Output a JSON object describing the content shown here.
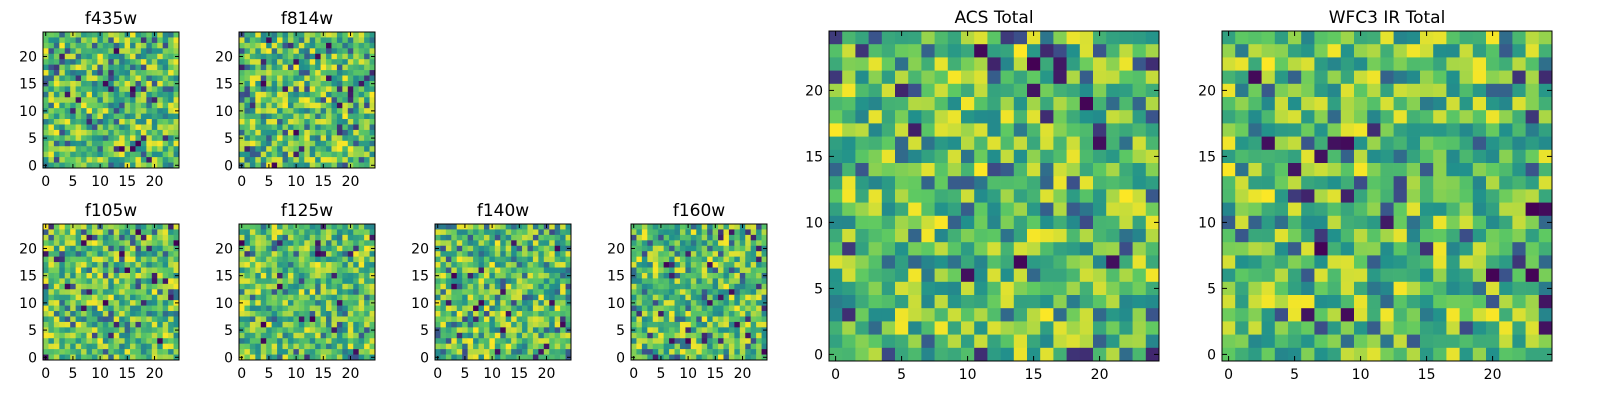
{
  "chart_data": [
    {
      "type": "heatmap",
      "title": "f435w",
      "xticks": [
        "0",
        "5",
        "10",
        "15",
        "20"
      ],
      "yticks": [
        "0",
        "5",
        "10",
        "15",
        "20"
      ],
      "xlim": [
        -0.5,
        24.5
      ],
      "ylim": [
        -0.5,
        24.5
      ],
      "grid_size": 25,
      "seed": 11,
      "colormap": "viridis"
    },
    {
      "type": "heatmap",
      "title": "f814w",
      "xticks": [
        "0",
        "5",
        "10",
        "15",
        "20"
      ],
      "yticks": [
        "0",
        "5",
        "10",
        "15",
        "20"
      ],
      "xlim": [
        -0.5,
        24.5
      ],
      "ylim": [
        -0.5,
        24.5
      ],
      "grid_size": 25,
      "seed": 23,
      "colormap": "viridis"
    },
    {
      "type": "heatmap",
      "title": "f105w",
      "xticks": [
        "0",
        "5",
        "10",
        "15",
        "20"
      ],
      "yticks": [
        "0",
        "5",
        "10",
        "15",
        "20"
      ],
      "xlim": [
        -0.5,
        24.5
      ],
      "ylim": [
        -0.5,
        24.5
      ],
      "grid_size": 25,
      "seed": 37,
      "colormap": "viridis"
    },
    {
      "type": "heatmap",
      "title": "f125w",
      "xticks": [
        "0",
        "5",
        "10",
        "15",
        "20"
      ],
      "yticks": [
        "0",
        "5",
        "10",
        "15",
        "20"
      ],
      "xlim": [
        -0.5,
        24.5
      ],
      "ylim": [
        -0.5,
        24.5
      ],
      "grid_size": 25,
      "seed": 41,
      "colormap": "viridis"
    },
    {
      "type": "heatmap",
      "title": "f140w",
      "xticks": [
        "0",
        "5",
        "10",
        "15",
        "20"
      ],
      "yticks": [
        "0",
        "5",
        "10",
        "15",
        "20"
      ],
      "xlim": [
        -0.5,
        24.5
      ],
      "ylim": [
        -0.5,
        24.5
      ],
      "grid_size": 25,
      "seed": 53,
      "colormap": "viridis"
    },
    {
      "type": "heatmap",
      "title": "f160w",
      "xticks": [
        "0",
        "5",
        "10",
        "15",
        "20"
      ],
      "yticks": [
        "0",
        "5",
        "10",
        "15",
        "20"
      ],
      "xlim": [
        -0.5,
        24.5
      ],
      "ylim": [
        -0.5,
        24.5
      ],
      "grid_size": 25,
      "seed": 67,
      "colormap": "viridis"
    },
    {
      "type": "heatmap",
      "title": "ACS Total",
      "xticks": [
        "0",
        "5",
        "10",
        "15",
        "20"
      ],
      "yticks": [
        "0",
        "5",
        "10",
        "15",
        "20"
      ],
      "xlim": [
        -0.5,
        24.5
      ],
      "ylim": [
        -0.5,
        24.5
      ],
      "grid_size": 25,
      "seed": 79,
      "colormap": "viridis"
    },
    {
      "type": "heatmap",
      "title": "WFC3 IR Total",
      "xticks": [
        "0",
        "5",
        "10",
        "15",
        "20"
      ],
      "yticks": [
        "0",
        "5",
        "10",
        "15",
        "20"
      ],
      "xlim": [
        -0.5,
        24.5
      ],
      "ylim": [
        -0.5,
        24.5
      ],
      "grid_size": 25,
      "seed": 97,
      "colormap": "viridis"
    }
  ],
  "colormap_stops": [
    "#440154",
    "#3b528b",
    "#21918c",
    "#5ec962",
    "#fde725"
  ]
}
